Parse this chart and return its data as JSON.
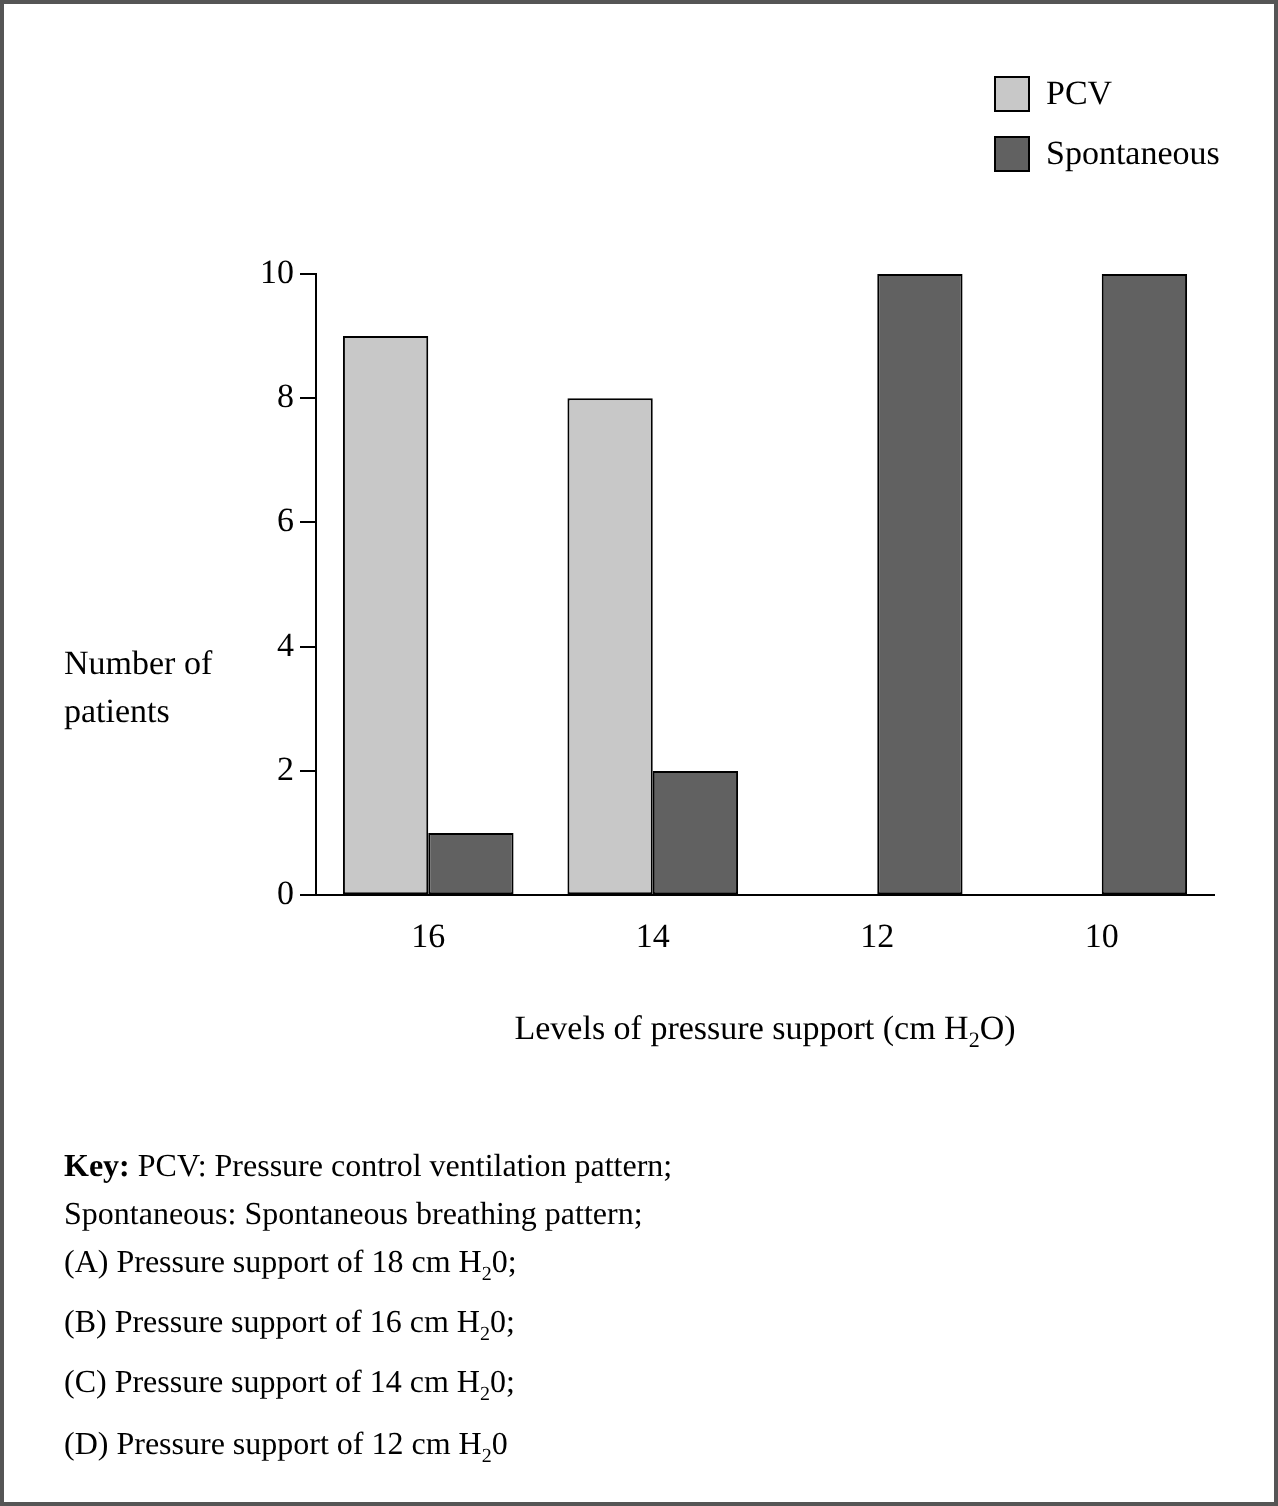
{
  "chart_data": {
    "type": "bar",
    "categories": [
      "16",
      "14",
      "12",
      "10"
    ],
    "series": [
      {
        "name": "PCV",
        "color": "#c8c8c8",
        "values": [
          9,
          8,
          0,
          0
        ]
      },
      {
        "name": "Spontaneous",
        "color": "#616161",
        "values": [
          1,
          2,
          10,
          10
        ]
      }
    ],
    "xlabel": "Levels of pressure support (cm H$_{2}$O)",
    "ylabel": "Number of patients",
    "ylim": [
      0,
      10
    ],
    "yticks": [
      0,
      2,
      4,
      6,
      8,
      10
    ],
    "legend": "top right",
    "grid": false,
    "annotations": [
      "Key: PCV: Pressure control ventilation pattern;",
      "Spontaneous: Spontaneous breathing pattern;",
      "(A) Pressure support of 18 cm H$_{2}$0;",
      "(B) Pressure support of 16 cm H$_{2}$0;",
      "(C) Pressure support of 14 cm H$_{2}$0;",
      "(D) Pressure support of 12 cm H$_{2}$0"
    ]
  }
}
